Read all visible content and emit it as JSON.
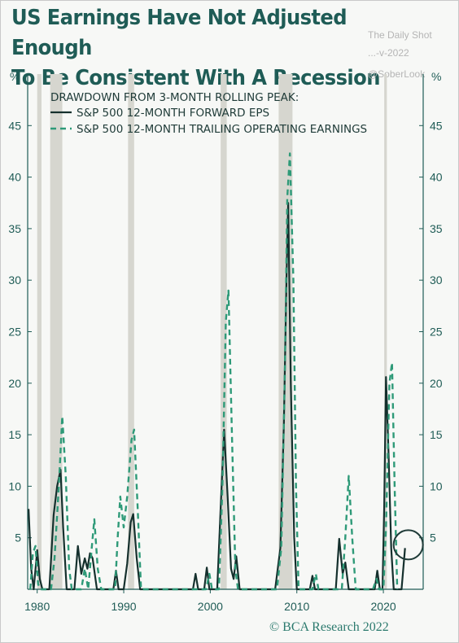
{
  "title": {
    "line1": "US Earnings Have Not Adjusted Enough",
    "line2": "To Be Consistent With A Recession"
  },
  "watermarks": {
    "source": "The Daily Shot",
    "date": "...-v-2022",
    "handle": "@SoberLook"
  },
  "footer": "© BCA Research 2022",
  "colors": {
    "background": "#f7f8f6",
    "title": "#1f5c56",
    "forward_eps": "#15302d",
    "trailing": "#2e9a78",
    "recession": "#d6d6cf",
    "highlight_circle": "#1f3b38"
  },
  "chart_data": {
    "type": "line",
    "title": "DRAWDOWN FROM 3-MONTH ROLLING PEAK:",
    "ylabel_left": "%",
    "ylabel_right": "%",
    "xlim": [
      1978.9,
      2024.6
    ],
    "ylim": [
      0,
      50
    ],
    "y_ticks": [
      5,
      10,
      15,
      20,
      25,
      30,
      35,
      40,
      45
    ],
    "x_ticks": [
      1980,
      1990,
      2000,
      2010,
      2020
    ],
    "grid": false,
    "legend_position": "top-left",
    "recessions": [
      [
        1980.0,
        1980.5
      ],
      [
        1981.5,
        1982.9
      ],
      [
        1990.5,
        1991.2
      ],
      [
        2001.2,
        2001.9
      ],
      [
        2007.9,
        2009.5
      ],
      [
        2020.1,
        2020.4
      ]
    ],
    "highlight": {
      "x": 2022.5,
      "y": 4.0,
      "label": "circle"
    },
    "series": [
      {
        "name": "S&P 500 12-MONTH FORWARD EPS",
        "style": "solid",
        "points": [
          [
            1979.0,
            7.8
          ],
          [
            1979.3,
            2.0
          ],
          [
            1979.6,
            0.0
          ],
          [
            1980.0,
            3.8
          ],
          [
            1980.3,
            1.0
          ],
          [
            1980.6,
            0.0
          ],
          [
            1981.4,
            0.0
          ],
          [
            1981.9,
            7.2
          ],
          [
            1982.3,
            10.0
          ],
          [
            1982.7,
            11.6
          ],
          [
            1983.0,
            6.0
          ],
          [
            1983.4,
            0.0
          ],
          [
            1984.3,
            0.0
          ],
          [
            1984.7,
            4.2
          ],
          [
            1985.1,
            1.5
          ],
          [
            1985.5,
            3.0
          ],
          [
            1985.8,
            2.0
          ],
          [
            1986.1,
            3.5
          ],
          [
            1986.4,
            3.0
          ],
          [
            1986.9,
            0.0
          ],
          [
            1988.8,
            0.0
          ],
          [
            1989.1,
            1.8
          ],
          [
            1989.4,
            0.0
          ],
          [
            1990.0,
            0.0
          ],
          [
            1990.4,
            2.5
          ],
          [
            1990.8,
            6.5
          ],
          [
            1991.1,
            7.3
          ],
          [
            1991.5,
            3.0
          ],
          [
            1991.9,
            0.0
          ],
          [
            1998.0,
            0.0
          ],
          [
            1998.3,
            1.5
          ],
          [
            1998.6,
            0.0
          ],
          [
            1999.3,
            0.0
          ],
          [
            1999.6,
            2.1
          ],
          [
            1999.9,
            0.0
          ],
          [
            2000.8,
            0.0
          ],
          [
            2001.2,
            8.0
          ],
          [
            2001.6,
            15.5
          ],
          [
            2002.0,
            9.0
          ],
          [
            2002.4,
            2.0
          ],
          [
            2002.7,
            1.0
          ],
          [
            2003.0,
            3.2
          ],
          [
            2003.4,
            0.0
          ],
          [
            2007.5,
            0.0
          ],
          [
            2008.1,
            4.0
          ],
          [
            2008.5,
            16.0
          ],
          [
            2008.8,
            30.0
          ],
          [
            2009.0,
            37.5
          ],
          [
            2009.3,
            20.0
          ],
          [
            2009.7,
            5.0
          ],
          [
            2010.0,
            0.0
          ],
          [
            2011.5,
            0.0
          ],
          [
            2011.8,
            1.3
          ],
          [
            2012.1,
            0.0
          ],
          [
            2014.5,
            0.0
          ],
          [
            2014.9,
            4.9
          ],
          [
            2015.3,
            1.5
          ],
          [
            2015.6,
            2.6
          ],
          [
            2016.0,
            0.0
          ],
          [
            2019.0,
            0.0
          ],
          [
            2019.3,
            1.8
          ],
          [
            2019.6,
            0.0
          ],
          [
            2019.9,
            0.0
          ],
          [
            2020.1,
            8.0
          ],
          [
            2020.3,
            20.6
          ],
          [
            2020.6,
            13.0
          ],
          [
            2020.9,
            4.0
          ],
          [
            2021.2,
            0.0
          ],
          [
            2022.1,
            0.0
          ],
          [
            2022.5,
            4.0
          ]
        ]
      },
      {
        "name": "S&P 500 12-MONTH TRAILING OPERATING EARNINGS",
        "style": "dashed",
        "points": [
          [
            1979.2,
            0.0
          ],
          [
            1979.5,
            3.5
          ],
          [
            1979.8,
            4.2
          ],
          [
            1980.1,
            0.5
          ],
          [
            1980.4,
            0.0
          ],
          [
            1981.6,
            0.0
          ],
          [
            1982.0,
            3.0
          ],
          [
            1982.5,
            10.0
          ],
          [
            1982.9,
            16.8
          ],
          [
            1983.3,
            11.0
          ],
          [
            1983.7,
            2.0
          ],
          [
            1984.0,
            0.0
          ],
          [
            1985.1,
            0.0
          ],
          [
            1985.5,
            2.0
          ],
          [
            1985.9,
            0.0
          ],
          [
            1986.3,
            4.0
          ],
          [
            1986.6,
            6.8
          ],
          [
            1987.0,
            2.0
          ],
          [
            1987.4,
            0.0
          ],
          [
            1989.0,
            0.0
          ],
          [
            1989.3,
            5.0
          ],
          [
            1989.6,
            9.0
          ],
          [
            1990.0,
            6.0
          ],
          [
            1990.4,
            9.0
          ],
          [
            1990.9,
            14.5
          ],
          [
            1991.2,
            15.5
          ],
          [
            1991.6,
            8.0
          ],
          [
            1992.0,
            0.0
          ],
          [
            1999.5,
            0.0
          ],
          [
            1999.9,
            1.5
          ],
          [
            2000.2,
            0.0
          ],
          [
            2001.0,
            0.0
          ],
          [
            2001.4,
            10.0
          ],
          [
            2001.8,
            26.0
          ],
          [
            2002.1,
            29.0
          ],
          [
            2002.5,
            15.0
          ],
          [
            2002.9,
            2.0
          ],
          [
            2003.2,
            0.0
          ],
          [
            2007.7,
            0.0
          ],
          [
            2008.2,
            4.0
          ],
          [
            2008.6,
            20.0
          ],
          [
            2008.9,
            38.0
          ],
          [
            2009.2,
            42.3
          ],
          [
            2009.6,
            30.0
          ],
          [
            2009.9,
            10.0
          ],
          [
            2010.2,
            0.0
          ],
          [
            2011.8,
            0.0
          ],
          [
            2012.2,
            1.5
          ],
          [
            2012.5,
            0.0
          ],
          [
            2015.2,
            0.0
          ],
          [
            2015.6,
            5.0
          ],
          [
            2016.0,
            11.0
          ],
          [
            2016.4,
            5.0
          ],
          [
            2016.8,
            0.0
          ],
          [
            2018.8,
            0.0
          ],
          [
            2019.2,
            1.0
          ],
          [
            2019.5,
            0.0
          ],
          [
            2020.0,
            0.0
          ],
          [
            2020.3,
            6.0
          ],
          [
            2020.7,
            20.0
          ],
          [
            2021.0,
            22.0
          ],
          [
            2021.3,
            10.0
          ],
          [
            2021.6,
            0.0
          ]
        ]
      }
    ]
  }
}
